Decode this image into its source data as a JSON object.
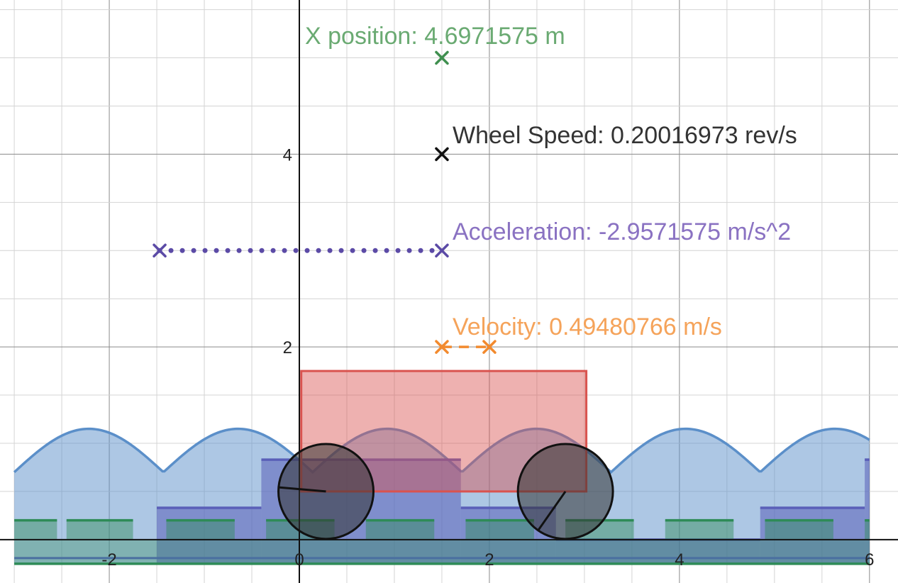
{
  "chart_data": {
    "type": "scatter",
    "xlim": [
      -3.15,
      6.3
    ],
    "ylim": [
      -0.45,
      5.6
    ],
    "grid": true,
    "x_ticks": [
      {
        "v": -2,
        "label": "-2"
      },
      {
        "v": 0,
        "label": "0"
      },
      {
        "v": 2,
        "label": "2"
      },
      {
        "v": 4,
        "label": "4"
      },
      {
        "v": 6,
        "label": "6"
      }
    ],
    "y_ticks": [
      {
        "v": 2,
        "label": "2"
      },
      {
        "v": 4,
        "label": "4"
      }
    ],
    "annotations": {
      "position": "X position: 4.6971575 m",
      "wheel_speed": "Wheel Speed: 0.20016973 rev/s",
      "acceleration": "Acceleration: -2.9571575 m/s^2",
      "velocity": "Velocity: 0.49480766 m/s"
    },
    "markers": [
      {
        "name": "position",
        "x": 1.5,
        "y": 5.0,
        "color": "#3f8f4f"
      },
      {
        "name": "wheel-speed",
        "x": 1.5,
        "y": 4.0,
        "color": "#111111"
      },
      {
        "name": "acceleration",
        "x": 1.5,
        "y": 3.0,
        "color": "#5b4aa6"
      },
      {
        "name": "acceleration-tail",
        "x": -1.47,
        "y": 3.0,
        "color": "#5b4aa6"
      },
      {
        "name": "velocity",
        "x": 1.5,
        "y": 2.0,
        "color": "#f28a2e"
      },
      {
        "name": "velocity-tail",
        "x": 2.0,
        "y": 2.0,
        "color": "#f28a2e"
      }
    ],
    "cart": {
      "body": {
        "x0": 0.02,
        "x1": 3.02,
        "y0": 0.5,
        "y1": 1.75,
        "color": "#d9534f"
      },
      "wheels": [
        {
          "cx": 0.28,
          "cy": 0.5,
          "r": 0.5,
          "spoke_angle_deg": 175
        },
        {
          "cx": 2.8,
          "cy": 0.5,
          "r": 0.5,
          "spoke_angle_deg": 235
        }
      ]
    },
    "terrain": {
      "bumps": {
        "x0": -3.0,
        "x1": 6.0,
        "period": 1.57,
        "base": 0.7,
        "amp": 0.45,
        "color": "#5b8fc9"
      },
      "blue_steps": [
        {
          "x0": -0.4,
          "x1": 1.7,
          "y": 0.83
        },
        {
          "x0": -1.5,
          "x1": -0.4,
          "y": 0.33
        },
        {
          "x0": 1.7,
          "x1": 2.7,
          "y": 0.33
        },
        {
          "x0": 2.7,
          "x1": 4.85,
          "y": 0.0
        },
        {
          "x0": 4.85,
          "x1": 5.95,
          "y": 0.33
        },
        {
          "x0": 5.95,
          "x1": 6.0,
          "y": 0.83
        }
      ],
      "green_tiles": [
        {
          "x0": -3.0,
          "x1": -2.55
        },
        {
          "x0": -2.45,
          "x1": -1.75
        },
        {
          "x0": -1.4,
          "x1": -0.68
        },
        {
          "x0": -0.35,
          "x1": 0.37
        },
        {
          "x0": 0.7,
          "x1": 1.42
        },
        {
          "x0": 1.75,
          "x1": 2.47
        },
        {
          "x0": 2.8,
          "x1": 3.52
        },
        {
          "x0": 3.85,
          "x1": 4.57
        },
        {
          "x0": 4.9,
          "x1": 5.62
        },
        {
          "x0": 5.95,
          "x1": 6.0
        }
      ],
      "green_tile_y": [
        0.0,
        0.2
      ],
      "green_band": {
        "y0": -0.25,
        "y1": 0.0
      },
      "green_color": "#2e8b57"
    }
  }
}
